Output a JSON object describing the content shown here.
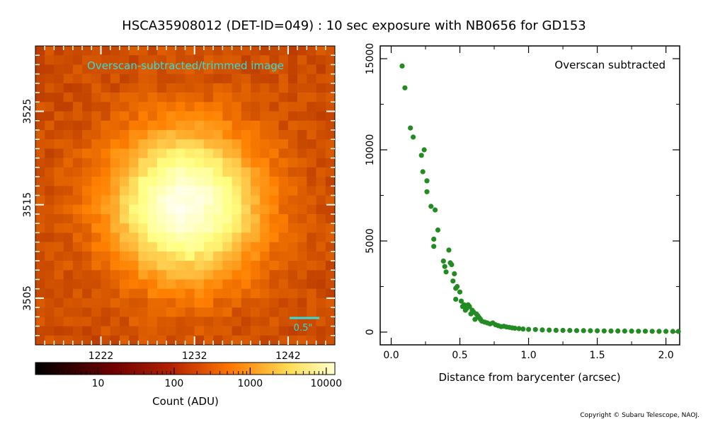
{
  "page": {
    "title": "HSCA35908012 (DET-ID=049) :  10 sec exposure with NB0656 for GD153",
    "copyright": "Copyright © Subaru Telescope, NAOJ."
  },
  "colors": {
    "annotation": "#33dddd",
    "points": "#228B22",
    "frame": "#000000"
  },
  "chart_data": [
    {
      "type": "heatmap",
      "annotation": "Overscan-subtracted/trimmed image",
      "scalebar_label": "0.5\"",
      "x_ticks": [
        "1222",
        "1232",
        "1242"
      ],
      "x_tick_values": [
        1222,
        1232,
        1242
      ],
      "y_ticks": [
        "3505",
        "3515",
        "3525"
      ],
      "y_tick_values": [
        3505,
        3515,
        3525
      ],
      "xlim": [
        1215,
        1247
      ],
      "ylim": [
        3500,
        3532
      ],
      "peak_center": [
        1231,
        3515
      ],
      "colorbar": {
        "label": "Count (ADU)",
        "scale": "log",
        "ticks": [
          "10",
          "100",
          "1000",
          "10000"
        ],
        "tick_values": [
          10,
          100,
          1000,
          10000
        ],
        "range": [
          1.5,
          13000
        ]
      }
    },
    {
      "type": "scatter",
      "annotation": "Overscan subtracted",
      "xlabel": "Distance from barycenter (arcsec)",
      "ylabel": "",
      "xlim": [
        -0.08,
        2.1
      ],
      "ylim": [
        -700,
        15700
      ],
      "x_ticks": [
        "0.0",
        "0.5",
        "1.0",
        "1.5",
        "2.0"
      ],
      "x_tick_values": [
        0.0,
        0.5,
        1.0,
        1.5,
        2.0
      ],
      "y_ticks": [
        "0",
        "5000",
        "10000",
        "15000"
      ],
      "y_tick_values": [
        0,
        5000,
        10000,
        15000
      ],
      "x": [
        0.08,
        0.1,
        0.14,
        0.16,
        0.22,
        0.23,
        0.24,
        0.26,
        0.26,
        0.29,
        0.31,
        0.31,
        0.32,
        0.34,
        0.38,
        0.39,
        0.4,
        0.42,
        0.43,
        0.44,
        0.45,
        0.46,
        0.47,
        0.47,
        0.48,
        0.5,
        0.51,
        0.52,
        0.53,
        0.54,
        0.55,
        0.56,
        0.57,
        0.58,
        0.59,
        0.6,
        0.61,
        0.62,
        0.63,
        0.64,
        0.65,
        0.66,
        0.68,
        0.7,
        0.72,
        0.74,
        0.76,
        0.78,
        0.8,
        0.82,
        0.84,
        0.86,
        0.88,
        0.9,
        0.93,
        0.96,
        1.0,
        1.05,
        1.1,
        1.15,
        1.2,
        1.25,
        1.3,
        1.35,
        1.4,
        1.45,
        1.5,
        1.55,
        1.6,
        1.65,
        1.7,
        1.75,
        1.8,
        1.85,
        1.9,
        1.95,
        2.0,
        2.05,
        2.09
      ],
      "y": [
        14600,
        13400,
        11200,
        10700,
        9700,
        8800,
        10000,
        7700,
        8300,
        6900,
        5100,
        4700,
        6700,
        5600,
        3900,
        3600,
        3300,
        4500,
        3800,
        3700,
        2800,
        3200,
        2400,
        1800,
        2500,
        2200,
        1700,
        1400,
        1500,
        1200,
        1300,
        1500,
        1400,
        1000,
        1200,
        1100,
        700,
        1000,
        900,
        800,
        700,
        600,
        550,
        500,
        450,
        500,
        400,
        350,
        300,
        320,
        280,
        260,
        230,
        210,
        190,
        170,
        150,
        140,
        120,
        110,
        100,
        95,
        90,
        85,
        80,
        75,
        70,
        65,
        60,
        58,
        55,
        52,
        50,
        48,
        45,
        42,
        40,
        38,
        35
      ]
    }
  ]
}
